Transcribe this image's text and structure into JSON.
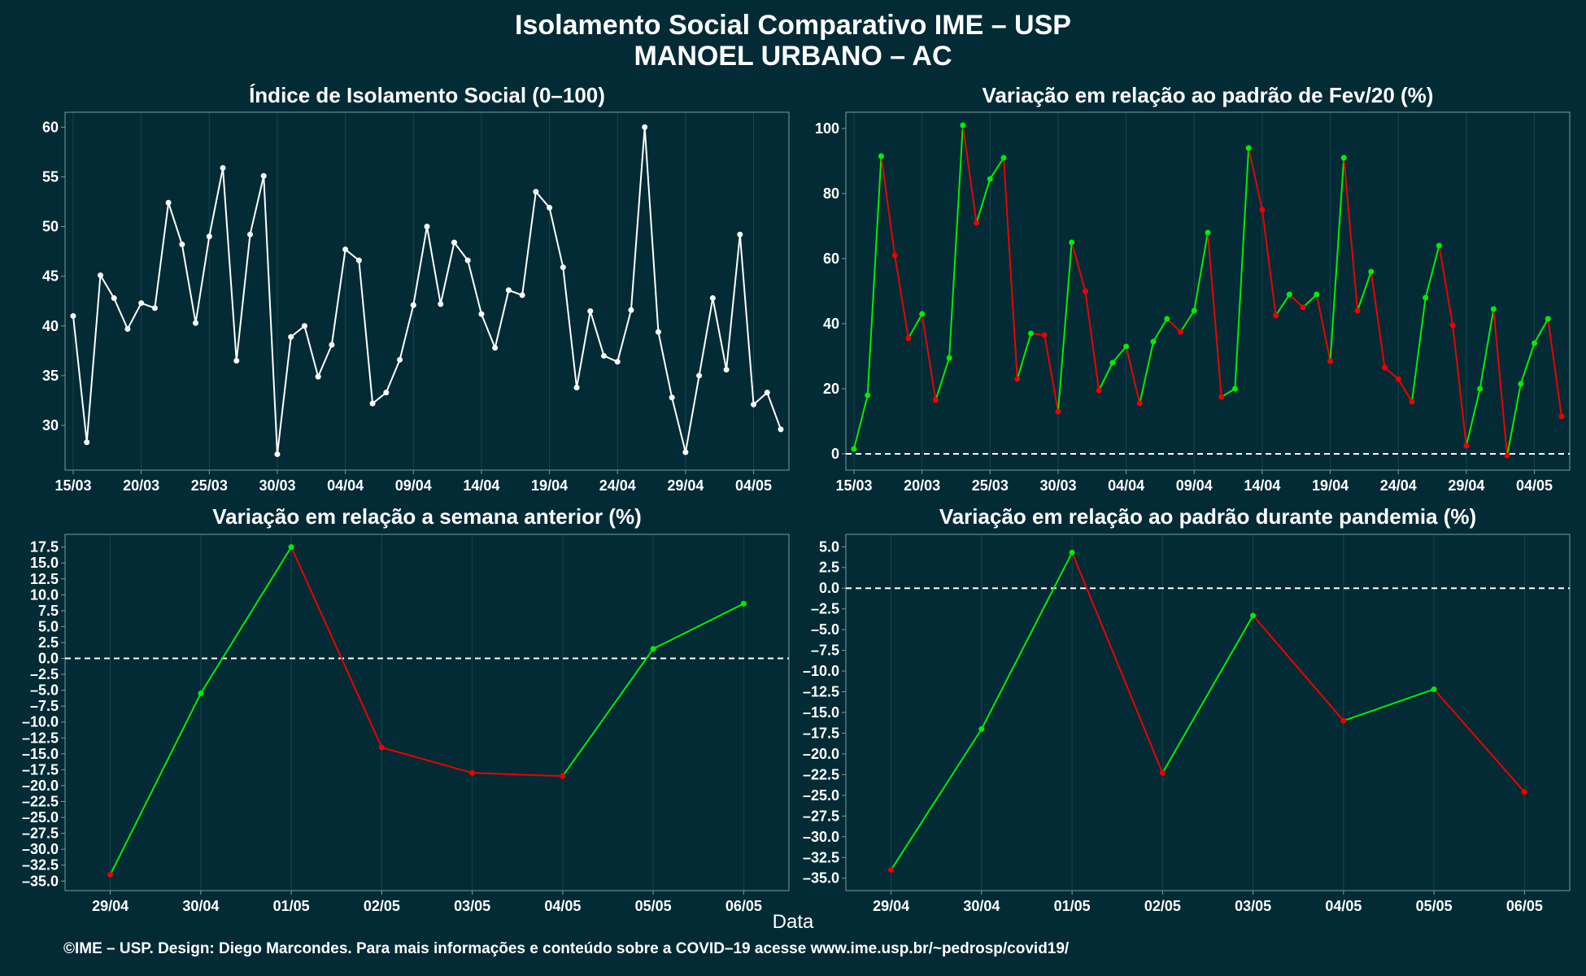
{
  "header": {
    "title_line1": "Isolamento Social Comparativo IME – USP",
    "title_line2": "MANOEL URBANO – AC"
  },
  "xlabel": "Data",
  "footer": "©IME – USP. Design: Diego Marcondes. Para mais informações e conteúdo sobre a COVID–19 acesse www.ime.usp.br/~pedrosp/covid19/",
  "colors": {
    "background": "#022b35",
    "white": "#ffffff",
    "positive": "#00ee00",
    "negative": "#ee0000",
    "grid": "#18434d",
    "frame": "#7f9aa0"
  },
  "chart_data": [
    {
      "type": "line",
      "title": "Índice de Isolamento Social (0–100)",
      "xlabel": "Data",
      "x_ticks": [
        "15/03",
        "20/03",
        "25/03",
        "30/03",
        "04/04",
        "09/04",
        "14/04",
        "19/04",
        "24/04",
        "29/04",
        "04/05"
      ],
      "x_start": "15/03",
      "ylim": [
        25.5,
        61.5
      ],
      "y_ticks": [
        30,
        35,
        40,
        45,
        50,
        55,
        60
      ],
      "colors": "white",
      "values": [
        41.0,
        28.3,
        45.1,
        42.8,
        39.7,
        42.3,
        41.8,
        52.4,
        48.2,
        40.3,
        49.0,
        55.9,
        36.5,
        49.2,
        55.1,
        27.1,
        38.9,
        40.0,
        34.9,
        38.1,
        47.7,
        46.6,
        32.2,
        33.3,
        36.6,
        42.1,
        50.0,
        42.2,
        48.4,
        46.6,
        41.2,
        37.8,
        43.6,
        43.1,
        53.5,
        51.9,
        45.9,
        33.8,
        41.5,
        37.0,
        36.4,
        41.6,
        60.0,
        39.4,
        32.8,
        27.3,
        35.0,
        42.8,
        35.6,
        49.2,
        32.1,
        33.3,
        29.6
      ]
    },
    {
      "type": "line",
      "title": "Variação em relação ao padrão de Fev/20 (%)",
      "xlabel": "Data",
      "x_ticks": [
        "15/03",
        "20/03",
        "25/03",
        "30/03",
        "04/04",
        "09/04",
        "14/04",
        "19/04",
        "24/04",
        "29/04",
        "04/05"
      ],
      "x_start": "15/03",
      "ylim": [
        -5,
        105
      ],
      "y_ticks": [
        0,
        20,
        40,
        60,
        80,
        100
      ],
      "reference_line": 0,
      "values": [
        1.5,
        18.0,
        91.5,
        61.0,
        35.5,
        43.0,
        16.5,
        29.5,
        101.0,
        71.0,
        84.5,
        91.0,
        23.0,
        37.0,
        36.5,
        13.0,
        65.0,
        50.0,
        19.5,
        28.0,
        33.0,
        15.5,
        34.5,
        41.5,
        37.5,
        44.0,
        68.0,
        17.5,
        20.0,
        94.0,
        75.0,
        42.5,
        49.0,
        45.0,
        49.0,
        28.5,
        91.0,
        44.0,
        56.0,
        26.5,
        23.0,
        16.0,
        48.0,
        64.0,
        39.5,
        2.5,
        20.0,
        44.5,
        -0.5,
        21.5,
        34.0,
        41.5,
        11.5
      ]
    },
    {
      "type": "line",
      "title": "Variação em relação a semana anterior (%)",
      "xlabel": "Data",
      "categories": [
        "29/04",
        "30/04",
        "01/05",
        "02/05",
        "03/05",
        "04/05",
        "05/05",
        "06/05"
      ],
      "values": [
        -34.0,
        -5.5,
        17.5,
        -14.0,
        -18.0,
        -18.5,
        1.5,
        8.6
      ],
      "ylim": [
        -36.5,
        19.5
      ],
      "y_ticks": [
        17.5,
        15.0,
        12.5,
        10.0,
        7.5,
        5.0,
        2.5,
        0.0,
        -2.5,
        -5.0,
        -7.5,
        -10.0,
        -12.5,
        -15.0,
        -17.5,
        -20.0,
        -22.5,
        -25.0,
        -27.5,
        -30.0,
        -32.5,
        -35.0
      ],
      "y_tick_labels": [
        "17.5",
        "15.0",
        "12.5",
        "10.0",
        "7.5",
        "5.0",
        "2.5",
        "0.0",
        "–2.5",
        "–5.0",
        "–7.5",
        "–10.0",
        "–12.5",
        "–15.0",
        "–17.5",
        "–20.0",
        "–22.5",
        "–25.0",
        "–27.5",
        "–30.0",
        "–32.5",
        "–35.0"
      ],
      "reference_line": 0
    },
    {
      "type": "line",
      "title": "Variação em relação ao padrão durante pandemia (%)",
      "xlabel": "Data",
      "categories": [
        "29/04",
        "30/04",
        "01/05",
        "02/05",
        "03/05",
        "04/05",
        "05/05",
        "06/05"
      ],
      "values": [
        -34.0,
        -17.0,
        4.3,
        -22.3,
        -3.3,
        -16.0,
        -12.2,
        -24.6
      ],
      "ylim": [
        -36.5,
        6.5
      ],
      "y_ticks": [
        5.0,
        2.5,
        0.0,
        -2.5,
        -5.0,
        -7.5,
        -10.0,
        -12.5,
        -15.0,
        -17.5,
        -20.0,
        -22.5,
        -25.0,
        -27.5,
        -30.0,
        -32.5,
        -35.0
      ],
      "y_tick_labels": [
        "5.0",
        "2.5",
        "0.0",
        "–2.5",
        "–5.0",
        "–7.5",
        "–10.0",
        "–12.5",
        "–15.0",
        "–17.5",
        "–20.0",
        "–22.5",
        "–25.0",
        "–27.5",
        "–30.0",
        "–32.5",
        "–35.0"
      ],
      "reference_line": 0
    }
  ]
}
